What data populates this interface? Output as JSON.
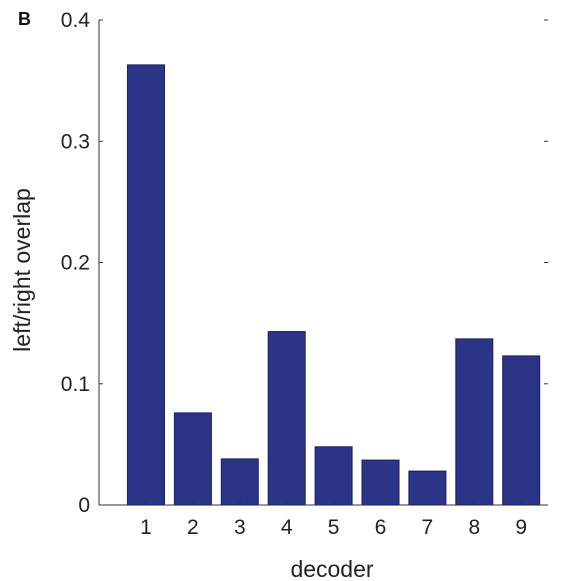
{
  "panel_label": "B",
  "chart_data": {
    "type": "bar",
    "categories": [
      "1",
      "2",
      "3",
      "4",
      "5",
      "6",
      "7",
      "8",
      "9"
    ],
    "values": [
      0.363,
      0.076,
      0.038,
      0.143,
      0.048,
      0.037,
      0.028,
      0.137,
      0.123
    ],
    "xlabel": "decoder",
    "ylabel": "left/right overlap",
    "ylim": [
      0,
      0.4
    ],
    "yticks": [
      "0",
      "0.1",
      "0.2",
      "0.3",
      "0.4"
    ],
    "bar_color": "#2b3486",
    "grid": false
  }
}
